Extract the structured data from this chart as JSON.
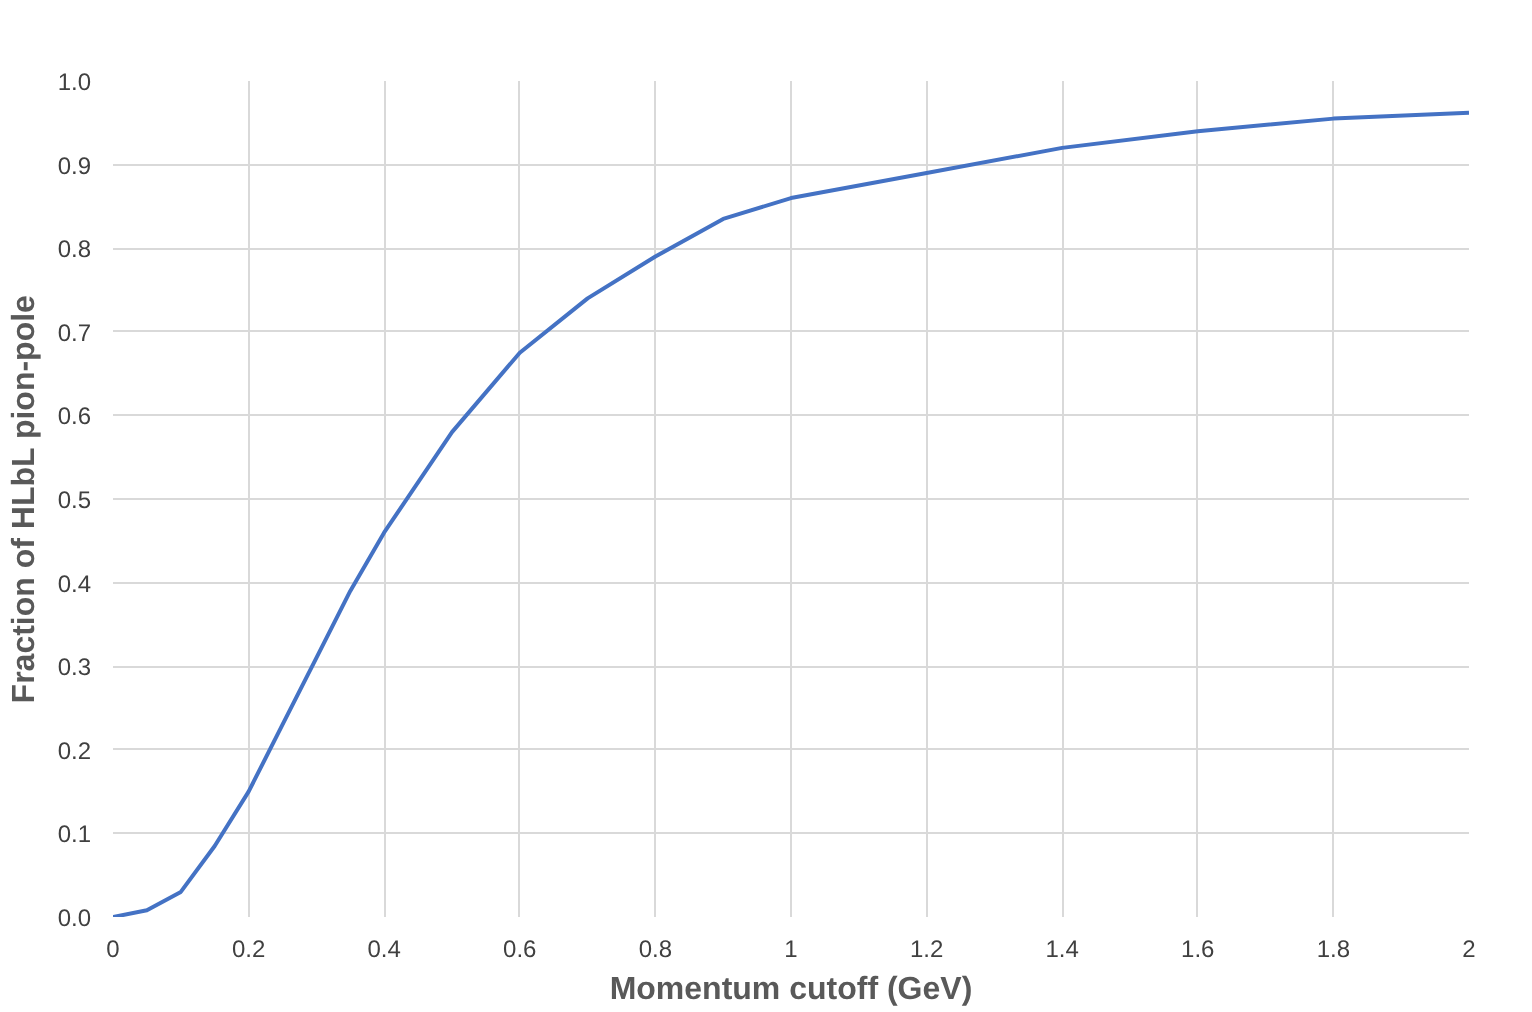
{
  "chart_data": {
    "type": "line",
    "xlabel": "Momentum cutoff (GeV)",
    "ylabel": "Fraction of HLbL pion-pole",
    "x": [
      0,
      0.05,
      0.1,
      0.15,
      0.2,
      0.25,
      0.3,
      0.35,
      0.4,
      0.5,
      0.6,
      0.7,
      0.8,
      0.9,
      1.0,
      1.2,
      1.4,
      1.6,
      1.8,
      2.0
    ],
    "series": [
      {
        "color": "#4472c4",
        "values": [
          0.0,
          0.008,
          0.03,
          0.085,
          0.15,
          0.23,
          0.31,
          0.39,
          0.46,
          0.58,
          0.675,
          0.74,
          0.79,
          0.835,
          0.86,
          0.89,
          0.92,
          0.94,
          0.955,
          0.962
        ]
      }
    ],
    "xlim": [
      0,
      2
    ],
    "ylim": [
      0,
      1.0
    ],
    "xticks": [
      0,
      0.2,
      0.4,
      0.6,
      0.8,
      1,
      1.2,
      1.4,
      1.6,
      1.8,
      2
    ],
    "yticks": [
      {
        "value": 0,
        "label": "0.0"
      },
      0.1,
      0.2,
      0.3,
      0.4,
      0.5,
      0.6,
      0.7,
      0.8,
      0.9,
      {
        "value": 1,
        "label": "1.0"
      }
    ],
    "grid": true,
    "marker": "none",
    "line_style": "solid"
  }
}
